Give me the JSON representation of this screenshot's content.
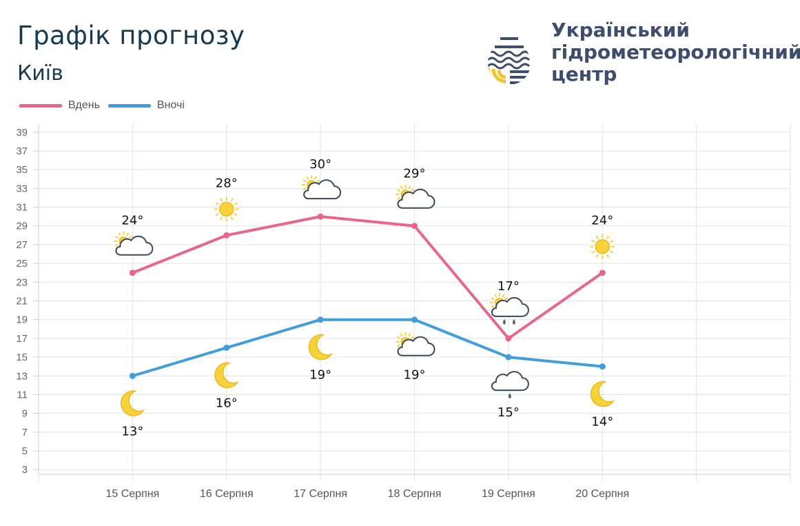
{
  "header": {
    "title": "Графік прогнозу",
    "subtitle": "Київ",
    "org_lines": [
      "Український",
      "гідрометеорологічний",
      "центр"
    ]
  },
  "colors": {
    "day": "#e8668a",
    "night": "#3f9edb",
    "text": "#173a4f",
    "sun": "#f7d33a",
    "cloud": "#3a4858"
  },
  "chart_data": {
    "type": "line",
    "categories": [
      "15 Серпня",
      "16 Серпня",
      "17 Серпня",
      "18 Серпня",
      "19 Серпня",
      "20 Серпня"
    ],
    "series": [
      {
        "name": "Вдень",
        "values": [
          24,
          28,
          30,
          29,
          17,
          24
        ],
        "labels": [
          "24°",
          "28°",
          "30°",
          "29°",
          "17°",
          "24°"
        ],
        "icons": [
          "sun-cloud-icon",
          "sun-icon",
          "sun-cloud-icon",
          "sun-cloud-icon",
          "sun-cloud-rain-icon",
          "sun-icon"
        ]
      },
      {
        "name": "Вночі",
        "values": [
          13,
          16,
          19,
          19,
          15,
          14
        ],
        "labels": [
          "13°",
          "16°",
          "19°",
          "19°",
          "15°",
          "14°"
        ],
        "icons": [
          "moon-icon",
          "moon-icon",
          "moon-icon",
          "sun-cloud-icon",
          "cloud-rain-icon",
          "moon-icon"
        ]
      }
    ],
    "yticks": [
      3,
      5,
      7,
      9,
      11,
      13,
      15,
      17,
      19,
      21,
      23,
      25,
      27,
      29,
      31,
      33,
      35,
      37,
      39
    ],
    "ylim": [
      3,
      39
    ],
    "grid": true,
    "legend": "top-left"
  }
}
